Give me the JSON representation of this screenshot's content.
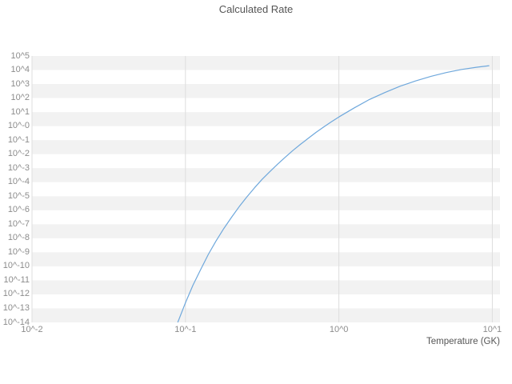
{
  "colors": {
    "band": "#f2f2f2",
    "grid": "#dddddd",
    "tick_text": "#8c8c8c",
    "title_text": "#555555",
    "line": "#6fa8dc"
  },
  "chart_data": {
    "type": "line",
    "title": "Calculated Rate",
    "xlabel": "Temperature (GK)",
    "ylabel": "",
    "x_scale": "log",
    "y_scale": "log",
    "xlim_log": [
      -2,
      1.05
    ],
    "ylim_log": [
      -14,
      5
    ],
    "grid": "horizontal-bands-and-vertical-decade-lines",
    "legend": "none",
    "x_ticks": [
      {
        "value": 0.01,
        "label": "10^-2"
      },
      {
        "value": 0.1,
        "label": "10^-1"
      },
      {
        "value": 1,
        "label": "10^0"
      },
      {
        "value": 10,
        "label": "10^1"
      }
    ],
    "y_ticks": [
      {
        "value": 100000.0,
        "label": "10^5"
      },
      {
        "value": 10000.0,
        "label": "10^4"
      },
      {
        "value": 1000.0,
        "label": "10^3"
      },
      {
        "value": 100.0,
        "label": "10^2"
      },
      {
        "value": 10.0,
        "label": "10^1"
      },
      {
        "value": 1,
        "label": "10^-0"
      },
      {
        "value": 0.1,
        "label": "10^-1"
      },
      {
        "value": 0.01,
        "label": "10^-2"
      },
      {
        "value": 0.001,
        "label": "10^-3"
      },
      {
        "value": 0.0001,
        "label": "10^-4"
      },
      {
        "value": 1e-05,
        "label": "10^-5"
      },
      {
        "value": 1e-06,
        "label": "10^-6"
      },
      {
        "value": 1e-07,
        "label": "10^-7"
      },
      {
        "value": 1e-08,
        "label": "10^-8"
      },
      {
        "value": 1e-09,
        "label": "10^-9"
      },
      {
        "value": 1e-10,
        "label": "10^-10"
      },
      {
        "value": 1e-11,
        "label": "10^-11"
      },
      {
        "value": 1e-12,
        "label": "10^-12"
      },
      {
        "value": 1e-13,
        "label": "10^-13"
      },
      {
        "value": 1e-14,
        "label": "10^-14"
      }
    ],
    "series": [
      {
        "name": "calculated-rate",
        "color": "#6fa8dc",
        "points": [
          [
            0.0891,
            1e-14
          ],
          [
            0.1,
            2.5e-13
          ],
          [
            0.112,
            4.5e-12
          ],
          [
            0.126,
            6.3e-11
          ],
          [
            0.141,
            7.1e-10
          ],
          [
            0.158,
            6.3e-09
          ],
          [
            0.178,
            5e-08
          ],
          [
            0.2,
            3.2e-07
          ],
          [
            0.224,
            1.8e-06
          ],
          [
            0.251,
            8.9e-06
          ],
          [
            0.282,
            4e-05
          ],
          [
            0.316,
            0.00016
          ],
          [
            0.355,
            0.00056
          ],
          [
            0.398,
            0.0019
          ],
          [
            0.447,
            0.006
          ],
          [
            0.501,
            0.018
          ],
          [
            0.562,
            0.05
          ],
          [
            0.631,
            0.135
          ],
          [
            0.708,
            0.35
          ],
          [
            0.794,
            0.85
          ],
          [
            0.891,
            2.0
          ],
          [
            1.0,
            4.5
          ],
          [
            1.26,
            20
          ],
          [
            1.58,
            79
          ],
          [
            2.0,
            250
          ],
          [
            2.51,
            710
          ],
          [
            3.16,
            1660
          ],
          [
            3.98,
            3550
          ],
          [
            5.01,
            6600
          ],
          [
            6.31,
            11000
          ],
          [
            7.94,
            15800
          ],
          [
            9.55,
            20400
          ]
        ]
      }
    ]
  }
}
